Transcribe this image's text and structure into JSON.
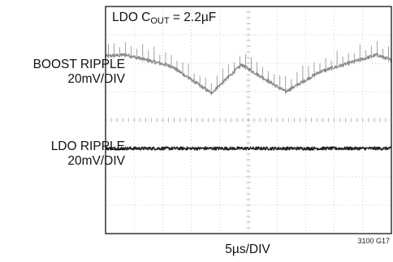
{
  "chart_data": {
    "type": "line",
    "title": {
      "prefix": "LDO C",
      "subscript": "OUT",
      "suffix": " = 2.2µF"
    },
    "xlabel": "5µs/DIV",
    "figure_id": "3100 G17",
    "grid": true,
    "grid_divisions": {
      "x": 10,
      "y": 8
    },
    "xlim": [
      0,
      50
    ],
    "x_unit": "µs",
    "series": [
      {
        "label_line1": "BOOST RIPPLE",
        "label_line2": "20mV/DIV",
        "center_div_from_top": 2.0,
        "x": [
          0,
          3.5,
          11.5,
          18.5,
          23.8,
          31.5,
          37.5,
          47.5,
          50
        ],
        "y_div": [
          0.25,
          0.3,
          -0.1,
          -1.05,
          -0.05,
          -1.0,
          -0.3,
          0.3,
          0.1
        ],
        "color": "#8a8a8a",
        "noise_div": 0.06,
        "spike_interval_us": 1.0,
        "spike_height_div": 0.45
      },
      {
        "label_line1": "LDO RIPPLE",
        "label_line2": "20mV/DIV",
        "center_div_from_top": 5.0,
        "x": [
          0,
          50
        ],
        "y_div": [
          0,
          0
        ],
        "color": "#222222",
        "noise_div": 0.055
      }
    ]
  }
}
